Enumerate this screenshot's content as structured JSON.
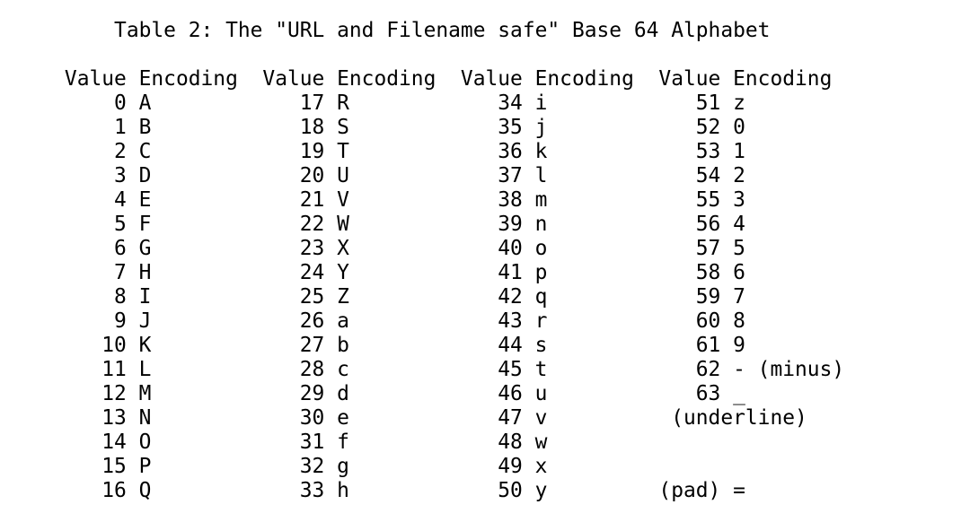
{
  "page": {
    "background": "#ffffff",
    "text_color": "#000000"
  },
  "document": {
    "title": "Table 2: The \"URL and Filename safe\" Base 64 Alphabet",
    "table": {
      "column_groups": [
        {
          "header": {
            "value_label": "Value",
            "encoding_label": "Encoding"
          },
          "rows": [
            {
              "value": "0",
              "encoding": "A"
            },
            {
              "value": "1",
              "encoding": "B"
            },
            {
              "value": "2",
              "encoding": "C"
            },
            {
              "value": "3",
              "encoding": "D"
            },
            {
              "value": "4",
              "encoding": "E"
            },
            {
              "value": "5",
              "encoding": "F"
            },
            {
              "value": "6",
              "encoding": "G"
            },
            {
              "value": "7",
              "encoding": "H"
            },
            {
              "value": "8",
              "encoding": "I"
            },
            {
              "value": "9",
              "encoding": "J"
            },
            {
              "value": "10",
              "encoding": "K"
            },
            {
              "value": "11",
              "encoding": "L"
            },
            {
              "value": "12",
              "encoding": "M"
            },
            {
              "value": "13",
              "encoding": "N"
            },
            {
              "value": "14",
              "encoding": "O"
            },
            {
              "value": "15",
              "encoding": "P"
            },
            {
              "value": "16",
              "encoding": "Q"
            }
          ]
        },
        {
          "header": {
            "value_label": "Value",
            "encoding_label": "Encoding"
          },
          "rows": [
            {
              "value": "17",
              "encoding": "R"
            },
            {
              "value": "18",
              "encoding": "S"
            },
            {
              "value": "19",
              "encoding": "T"
            },
            {
              "value": "20",
              "encoding": "U"
            },
            {
              "value": "21",
              "encoding": "V"
            },
            {
              "value": "22",
              "encoding": "W"
            },
            {
              "value": "23",
              "encoding": "X"
            },
            {
              "value": "24",
              "encoding": "Y"
            },
            {
              "value": "25",
              "encoding": "Z"
            },
            {
              "value": "26",
              "encoding": "a"
            },
            {
              "value": "27",
              "encoding": "b"
            },
            {
              "value": "28",
              "encoding": "c"
            },
            {
              "value": "29",
              "encoding": "d"
            },
            {
              "value": "30",
              "encoding": "e"
            },
            {
              "value": "31",
              "encoding": "f"
            },
            {
              "value": "32",
              "encoding": "g"
            },
            {
              "value": "33",
              "encoding": "h"
            }
          ]
        },
        {
          "header": {
            "value_label": "Value",
            "encoding_label": "Encoding"
          },
          "rows": [
            {
              "value": "34",
              "encoding": "i"
            },
            {
              "value": "35",
              "encoding": "j"
            },
            {
              "value": "36",
              "encoding": "k"
            },
            {
              "value": "37",
              "encoding": "l"
            },
            {
              "value": "38",
              "encoding": "m"
            },
            {
              "value": "39",
              "encoding": "n"
            },
            {
              "value": "40",
              "encoding": "o"
            },
            {
              "value": "41",
              "encoding": "p"
            },
            {
              "value": "42",
              "encoding": "q"
            },
            {
              "value": "43",
              "encoding": "r"
            },
            {
              "value": "44",
              "encoding": "s"
            },
            {
              "value": "45",
              "encoding": "t"
            },
            {
              "value": "46",
              "encoding": "u"
            },
            {
              "value": "47",
              "encoding": "v"
            },
            {
              "value": "48",
              "encoding": "w"
            },
            {
              "value": "49",
              "encoding": "x"
            },
            {
              "value": "50",
              "encoding": "y"
            }
          ]
        },
        {
          "header": {
            "value_label": "Value",
            "encoding_label": "Encoding"
          },
          "rows": [
            {
              "value": "51",
              "encoding": "z"
            },
            {
              "value": "52",
              "encoding": "0"
            },
            {
              "value": "53",
              "encoding": "1"
            },
            {
              "value": "54",
              "encoding": "2"
            },
            {
              "value": "55",
              "encoding": "3"
            },
            {
              "value": "56",
              "encoding": "4"
            },
            {
              "value": "57",
              "encoding": "5"
            },
            {
              "value": "58",
              "encoding": "6"
            },
            {
              "value": "59",
              "encoding": "7"
            },
            {
              "value": "60",
              "encoding": "8"
            },
            {
              "value": "61",
              "encoding": "9"
            },
            {
              "value": "62",
              "encoding": "- (minus)"
            },
            {
              "value": "63",
              "encoding": "_"
            }
          ]
        }
      ],
      "annotations": [
        {
          "row": 13,
          "col": 54,
          "text": "(underline)"
        },
        {
          "row": 16,
          "col": 53,
          "text": "(pad) ="
        }
      ]
    }
  }
}
